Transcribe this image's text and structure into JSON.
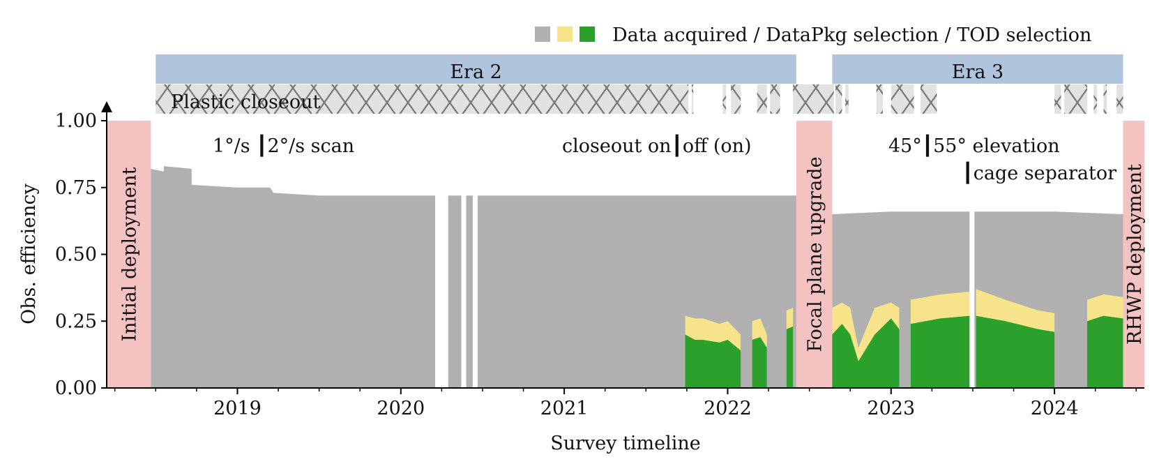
{
  "chart_data": {
    "type": "area",
    "xlabel": "Survey timeline",
    "ylabel": "Obs. efficiency",
    "xlim": [
      2018.2,
      2024.55
    ],
    "ylim": [
      0,
      1.0
    ],
    "x_ticks": [
      2019,
      2020,
      2021,
      2022,
      2023,
      2024
    ],
    "x_tick_labels": [
      "2019",
      "2020",
      "2021",
      "2022",
      "2023",
      "2024"
    ],
    "y_ticks": [
      0,
      0.25,
      0.5,
      0.75,
      1.0
    ],
    "y_tick_labels": [
      "0.00",
      "0.25",
      "0.50",
      "0.75",
      "1.00"
    ],
    "legend": {
      "text": "Data acquired / DataPkg selection / TOD selection",
      "placement": "top-right",
      "colors": [
        "#b0b0b0",
        "#f7e38a",
        "#2ca02c"
      ]
    },
    "series": [
      {
        "name": "Data acquired",
        "color": "#b0b0b0",
        "segments": [
          {
            "x": [
              2018.47,
              2018.55,
              2018.55,
              2018.72,
              2018.72,
              2019.0,
              2019.2,
              2019.22,
              2019.5,
              2020.0,
              2020.21
            ],
            "y": [
              0.82,
              0.81,
              0.83,
              0.82,
              0.76,
              0.75,
              0.75,
              0.73,
              0.72,
              0.72,
              0.72
            ]
          },
          {
            "x": [
              2020.29,
              2020.37
            ],
            "y": [
              0.72,
              0.72
            ]
          },
          {
            "x": [
              2020.4,
              2020.44
            ],
            "y": [
              0.72,
              0.72
            ]
          },
          {
            "x": [
              2020.47,
              2021.0,
              2021.5,
              2022.0,
              2022.42
            ],
            "y": [
              0.72,
              0.72,
              0.72,
              0.72,
              0.72
            ]
          },
          {
            "x": [
              2022.64,
              2023.0,
              2023.48
            ],
            "y": [
              0.65,
              0.66,
              0.66
            ]
          },
          {
            "x": [
              2023.51,
              2024.0,
              2024.42
            ],
            "y": [
              0.66,
              0.66,
              0.65
            ]
          }
        ]
      },
      {
        "name": "DataPkg selection",
        "color": "#f7e38a",
        "segments": [
          {
            "x": [
              2021.74,
              2021.8,
              2021.85,
              2021.95,
              2022.0,
              2022.08
            ],
            "y": [
              0.27,
              0.26,
              0.26,
              0.24,
              0.25,
              0.2
            ]
          },
          {
            "x": [
              2022.15,
              2022.2,
              2022.24
            ],
            "y": [
              0.25,
              0.26,
              0.2
            ]
          },
          {
            "x": [
              2022.36,
              2022.4
            ],
            "y": [
              0.29,
              0.3
            ]
          },
          {
            "x": [
              2022.64,
              2022.7,
              2022.75,
              2022.8,
              2022.9,
              2023.0,
              2023.05
            ],
            "y": [
              0.3,
              0.32,
              0.3,
              0.15,
              0.3,
              0.32,
              0.3
            ]
          },
          {
            "x": [
              2023.12,
              2023.3,
              2023.48
            ],
            "y": [
              0.33,
              0.35,
              0.36
            ]
          },
          {
            "x": [
              2023.52,
              2023.7,
              2023.9,
              2024.0
            ],
            "y": [
              0.37,
              0.33,
              0.29,
              0.28
            ]
          },
          {
            "x": [
              2024.2,
              2024.3,
              2024.42
            ],
            "y": [
              0.33,
              0.35,
              0.34
            ]
          }
        ]
      },
      {
        "name": "TOD selection",
        "color": "#2ca02c",
        "segments": [
          {
            "x": [
              2021.74,
              2021.8,
              2021.85,
              2021.95,
              2022.0,
              2022.08
            ],
            "y": [
              0.2,
              0.18,
              0.18,
              0.17,
              0.18,
              0.14
            ]
          },
          {
            "x": [
              2022.15,
              2022.2,
              2022.24
            ],
            "y": [
              0.18,
              0.19,
              0.15
            ]
          },
          {
            "x": [
              2022.36,
              2022.4
            ],
            "y": [
              0.22,
              0.23
            ]
          },
          {
            "x": [
              2022.64,
              2022.7,
              2022.75,
              2022.8,
              2022.9,
              2023.0,
              2023.05
            ],
            "y": [
              0.2,
              0.24,
              0.2,
              0.1,
              0.2,
              0.26,
              0.22
            ]
          },
          {
            "x": [
              2023.12,
              2023.3,
              2023.48
            ],
            "y": [
              0.24,
              0.26,
              0.27
            ]
          },
          {
            "x": [
              2023.52,
              2023.7,
              2023.9,
              2024.0
            ],
            "y": [
              0.27,
              0.25,
              0.22,
              0.21
            ]
          },
          {
            "x": [
              2024.2,
              2024.3,
              2024.42
            ],
            "y": [
              0.25,
              0.27,
              0.26
            ]
          }
        ]
      }
    ],
    "deployment_periods": [
      {
        "label": "Initial deployment",
        "x": [
          2018.2,
          2018.47
        ],
        "color": "#f5c2c2"
      },
      {
        "label": "Focal plane upgrade",
        "x": [
          2022.42,
          2022.64
        ],
        "color": "#f5c2c2"
      },
      {
        "label": "RHWP deployment",
        "x": [
          2024.42,
          2024.55
        ],
        "color": "#f5c2c2"
      }
    ],
    "eras": [
      {
        "label": "Era 2",
        "x": [
          2018.5,
          2022.42
        ],
        "color": "#b0c4de"
      },
      {
        "label": "Era 3",
        "x": [
          2022.64,
          2024.42
        ],
        "color": "#b0c4de"
      }
    ],
    "closeout": {
      "label": "Plastic closeout",
      "segments": [
        [
          2018.5,
          2021.76
        ],
        [
          2021.78,
          2021.79
        ],
        [
          2021.97,
          2021.99
        ],
        [
          2022.02,
          2022.08
        ],
        [
          2022.18,
          2022.24
        ],
        [
          2022.26,
          2022.32
        ],
        [
          2022.4,
          2022.65
        ],
        [
          2022.66,
          2022.7
        ],
        [
          2022.72,
          2022.74
        ],
        [
          2022.91,
          2022.95
        ],
        [
          2023.0,
          2023.14
        ],
        [
          2023.18,
          2023.28
        ],
        [
          2024.0,
          2024.04
        ],
        [
          2024.06,
          2024.2
        ],
        [
          2024.24,
          2024.26
        ],
        [
          2024.3,
          2024.32
        ],
        [
          2024.38,
          2024.42
        ]
      ]
    },
    "annotations": [
      {
        "text": "1°/s ┃2°/s scan"
      },
      {
        "text": "closeout on┃off (on)"
      },
      {
        "text": "45°┃55° elevation"
      },
      {
        "text": "┃cage separator"
      }
    ]
  }
}
